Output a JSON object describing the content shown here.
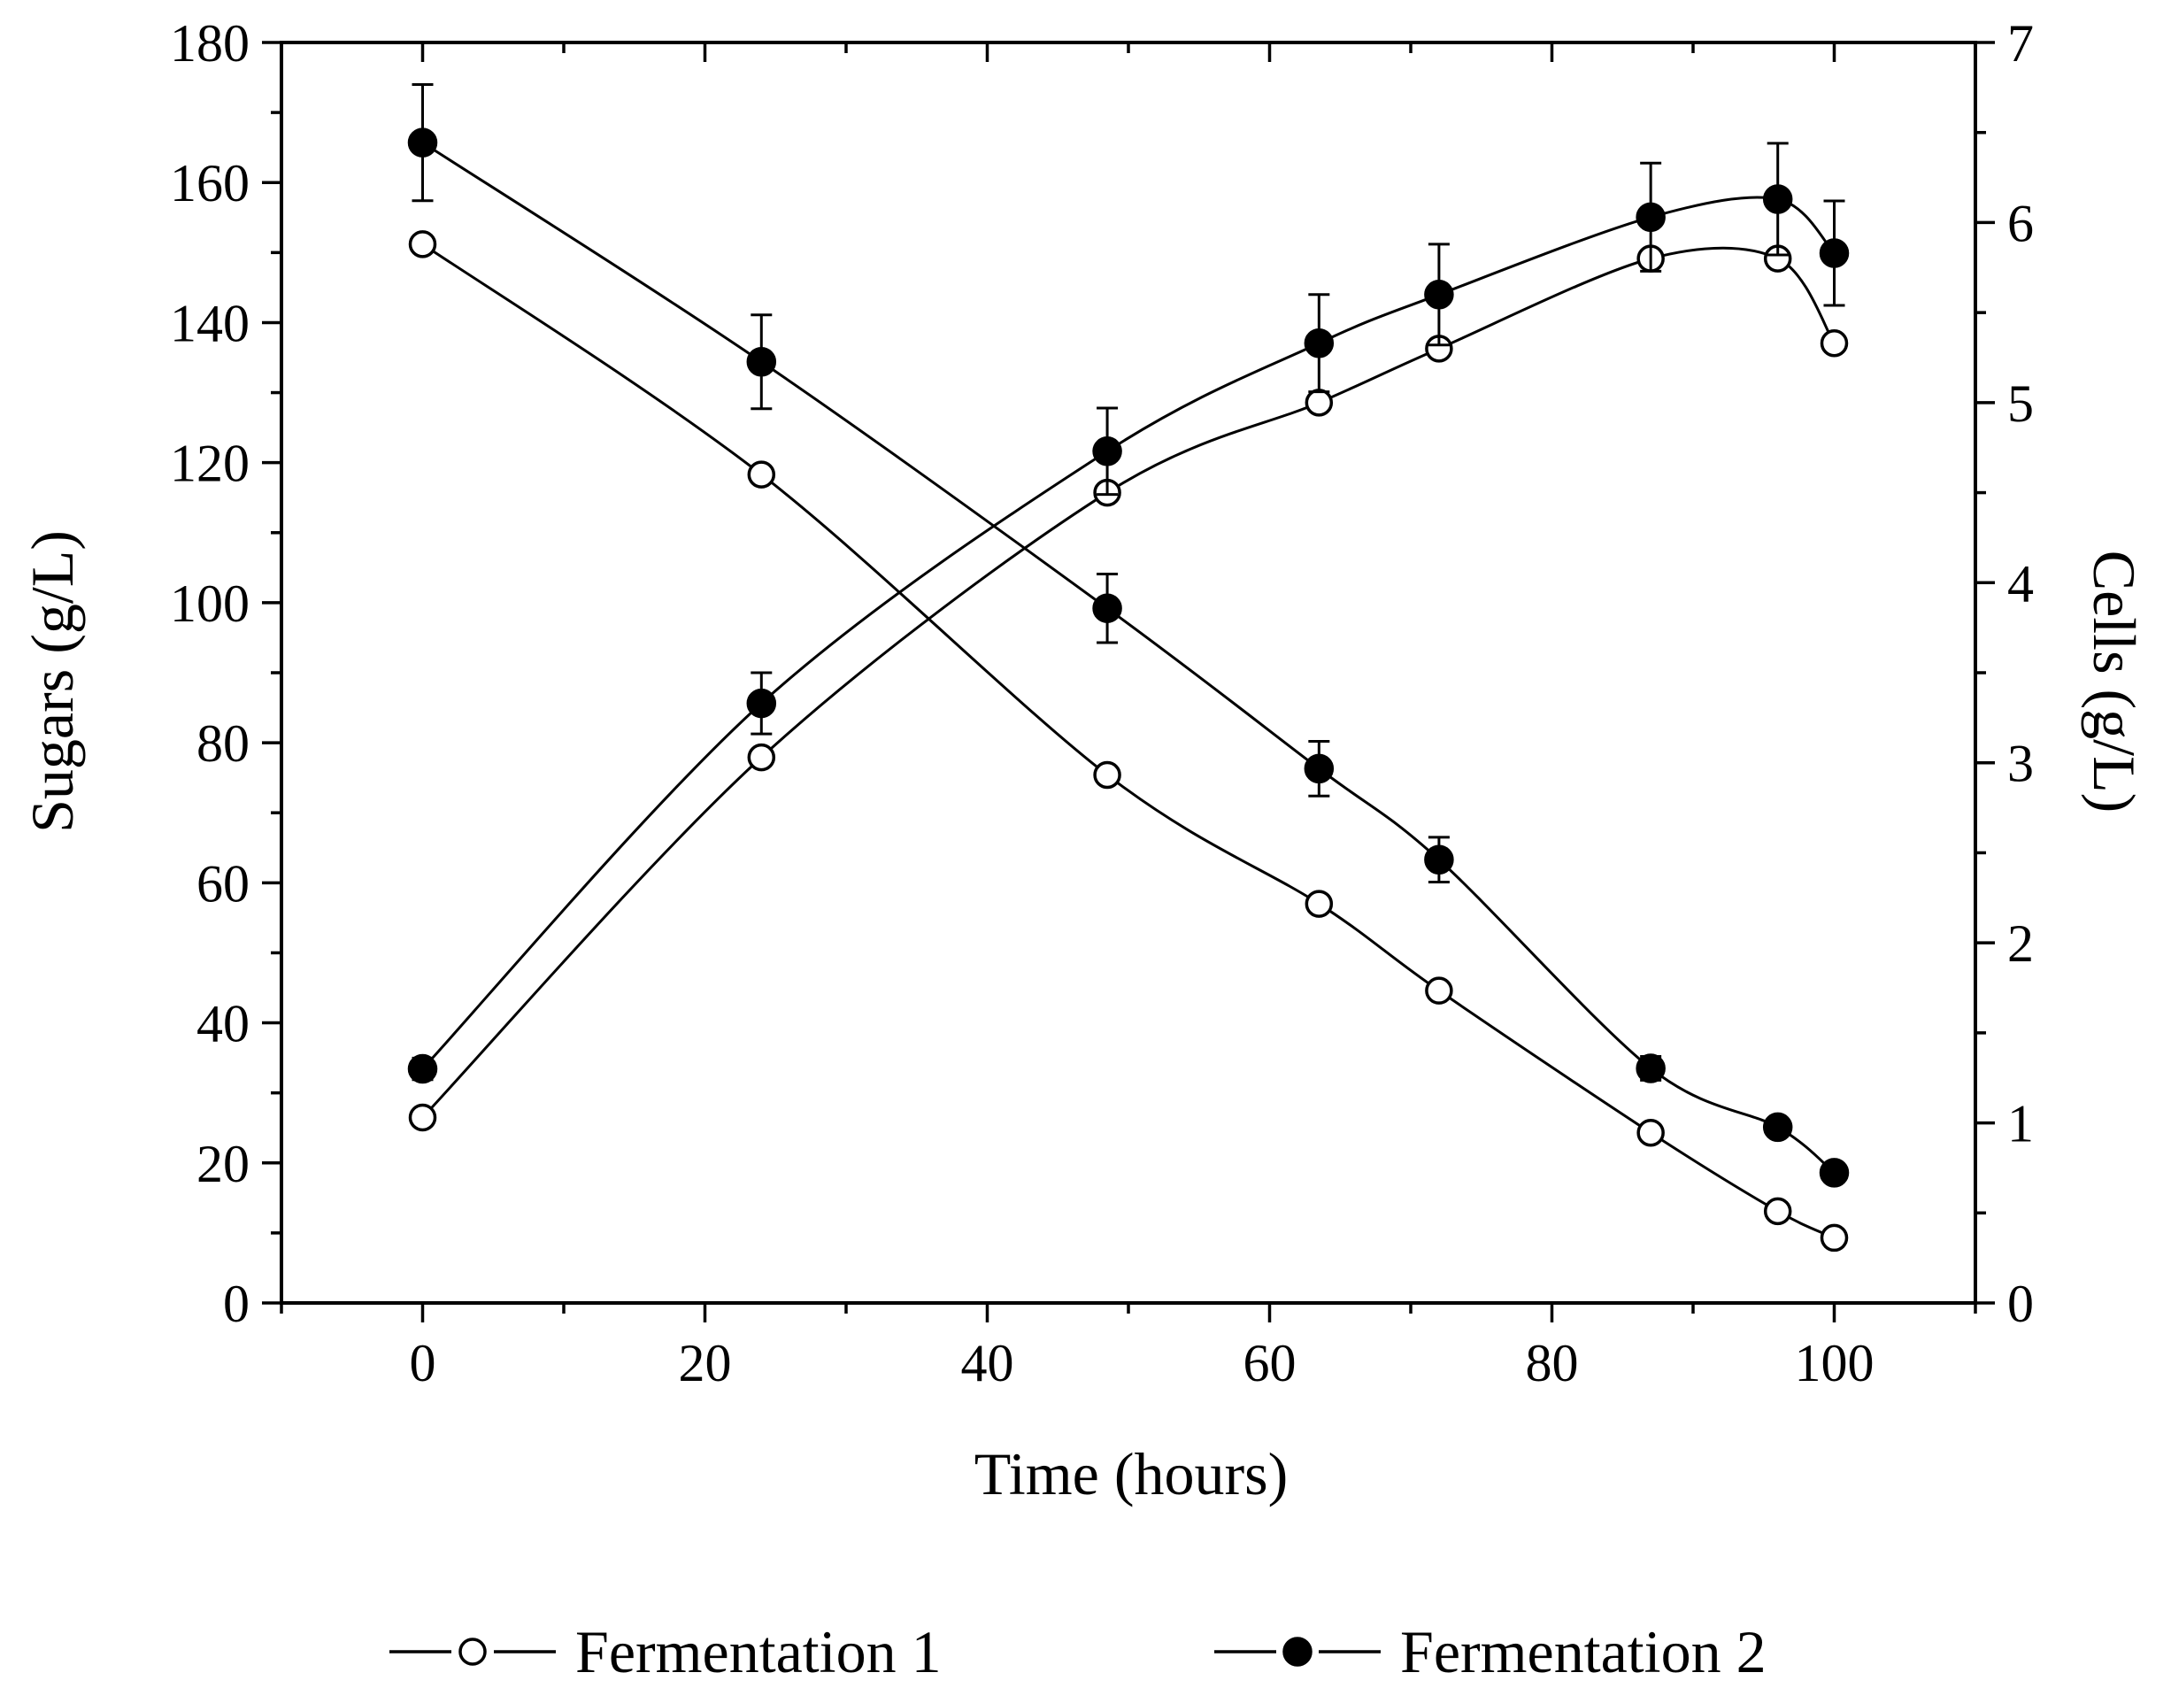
{
  "chart_data": {
    "type": "line",
    "title": "",
    "xlabel": "Time (hours)",
    "ylabel_left": "Sugars (g/L)",
    "ylabel_right": "Cells (g/L)",
    "xlim": [
      -10,
      110
    ],
    "ylim_left": [
      0,
      180
    ],
    "ylim_right": [
      0,
      7
    ],
    "x_ticks": [
      0,
      20,
      40,
      60,
      80,
      100
    ],
    "y_left_ticks": [
      0,
      20,
      40,
      60,
      80,
      100,
      120,
      140,
      160,
      180
    ],
    "y_right_ticks": [
      0,
      1,
      2,
      3,
      4,
      5,
      6,
      7
    ],
    "grid": false,
    "legend_position": "bottom",
    "series": [
      {
        "name": "Fermentation 1",
        "variable": "sugars",
        "axis": "left",
        "marker": "open-circle",
        "x": [
          0,
          24,
          48.5,
          63.5,
          72,
          87,
          96,
          100
        ],
        "y": [
          151.2,
          118.3,
          75.4,
          57.0,
          44.6,
          24.3,
          13.1,
          9.3
        ],
        "yerr": [
          0,
          0,
          0,
          0,
          0,
          0,
          0,
          0
        ]
      },
      {
        "name": "Fermentation 2",
        "variable": "sugars",
        "axis": "left",
        "marker": "filled-circle",
        "x": [
          0,
          24,
          48.5,
          63.5,
          72,
          87,
          96,
          100
        ],
        "y": [
          165.7,
          134.4,
          99.2,
          76.3,
          63.3,
          33.5,
          25.1,
          18.6
        ],
        "yerr": [
          8.3,
          6.7,
          4.9,
          3.9,
          3.2,
          1.7,
          0,
          0
        ]
      },
      {
        "name": "Fermentation 1",
        "variable": "cells",
        "axis": "right",
        "marker": "open-circle",
        "x": [
          0,
          24,
          48.5,
          63.5,
          72,
          87,
          96,
          100
        ],
        "y": [
          1.03,
          3.03,
          4.5,
          5.0,
          5.3,
          5.8,
          5.8,
          5.33
        ],
        "yerr": [
          0,
          0,
          0,
          0,
          0,
          0,
          0,
          0
        ]
      },
      {
        "name": "Fermentation 2",
        "variable": "cells",
        "axis": "right",
        "marker": "filled-circle",
        "x": [
          0,
          24,
          48.5,
          63.5,
          72,
          87,
          96,
          100
        ],
        "y": [
          1.3,
          3.33,
          4.73,
          5.33,
          5.6,
          6.03,
          6.13,
          5.83
        ],
        "yerr": [
          0.06,
          0.17,
          0.24,
          0.27,
          0.28,
          0.3,
          0.31,
          0.29
        ]
      }
    ],
    "legend": [
      {
        "label": "Fermentation 1",
        "marker": "open-circle"
      },
      {
        "label": "Fermentation 2",
        "marker": "filled-circle"
      }
    ]
  }
}
